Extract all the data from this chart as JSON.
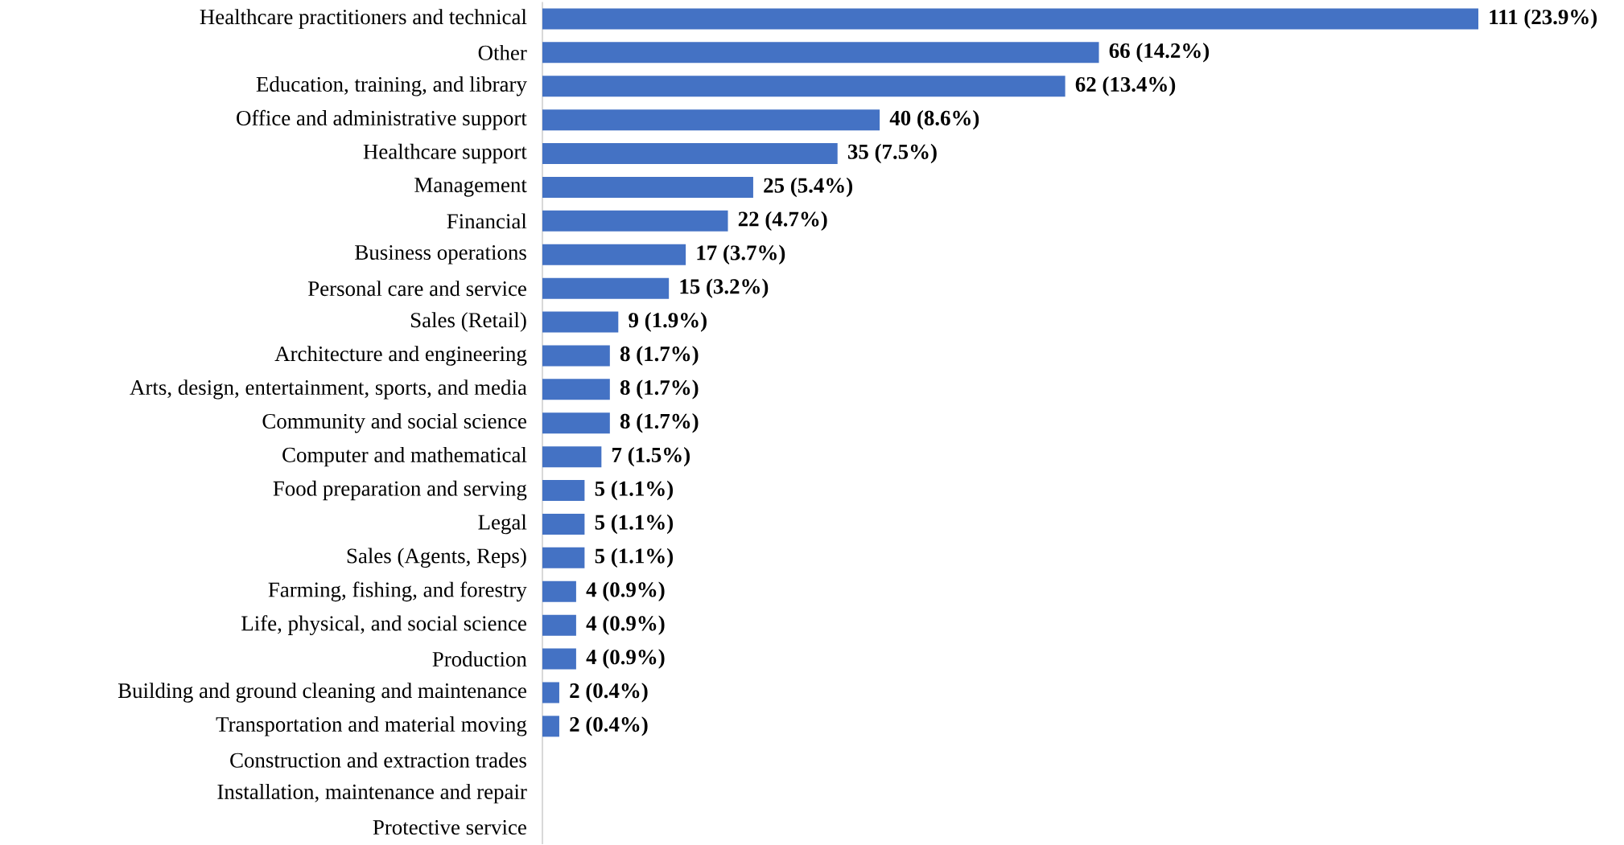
{
  "chart_data": {
    "type": "bar",
    "orientation": "horizontal",
    "color": "#4472c4",
    "categories": [
      "Healthcare practitioners and technical",
      "Other",
      "Education, training, and library",
      "Office and administrative support",
      "Healthcare support",
      "Management",
      "Financial",
      "Business operations",
      "Personal care and service",
      "Sales (Retail)",
      "Architecture and engineering",
      "Arts, design, entertainment, sports, and media",
      "Community and social science",
      "Computer and mathematical",
      "Food preparation and serving",
      "Legal",
      "Sales (Agents, Reps)",
      "Farming, fishing, and forestry",
      "Life, physical, and social science",
      "Production",
      "Building and ground cleaning and maintenance",
      "Transportation and material moving",
      "Construction and extraction trades",
      "Installation, maintenance and repair",
      "Protective service"
    ],
    "values": [
      111,
      66,
      62,
      40,
      35,
      25,
      22,
      17,
      15,
      9,
      8,
      8,
      8,
      7,
      5,
      5,
      5,
      4,
      4,
      4,
      2,
      2,
      null,
      null,
      null
    ],
    "value_labels": [
      "111 (23.9%)",
      "66 (14.2%)",
      "62 (13.4%)",
      "40 (8.6%)",
      "35 (7.5%)",
      "25 (5.4%)",
      "22 (4.7%)",
      "17 (3.7%)",
      "15 (3.2%)",
      "9 (1.9%)",
      "8 (1.7%)",
      "8 (1.7%)",
      "8 (1.7%)",
      "7 (1.5%)",
      "5 (1.1%)",
      "5 (1.1%)",
      "5 (1.1%)",
      "4 (0.9%)",
      "4 (0.9%)",
      "4 (0.9%)",
      "2 (0.4%)",
      "2 (0.4%)",
      null,
      null,
      null
    ]
  }
}
